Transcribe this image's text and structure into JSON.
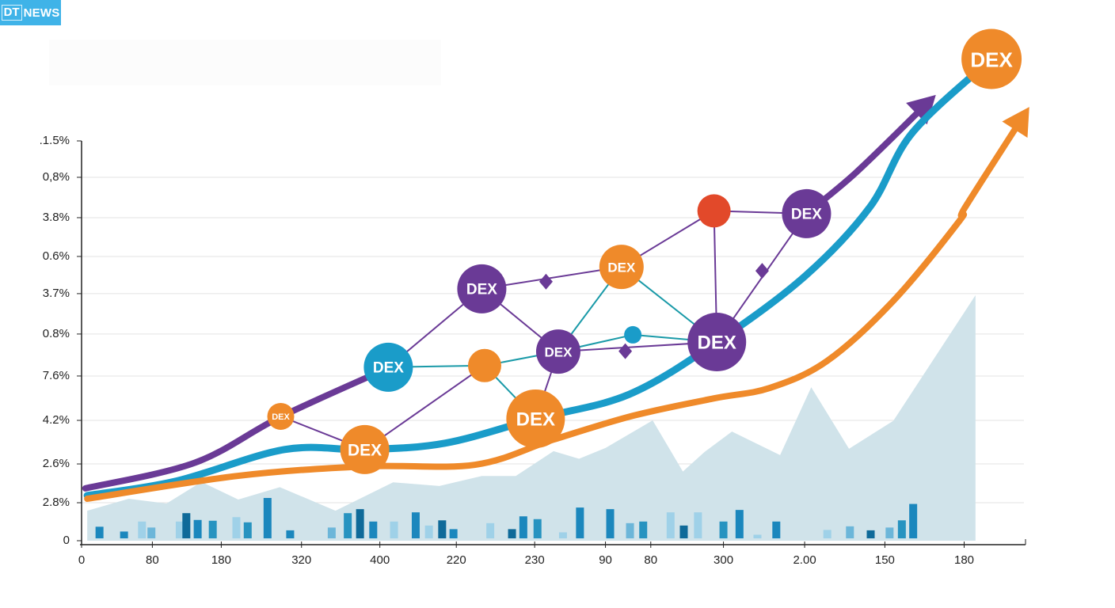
{
  "brand": {
    "logo_mark": "DT",
    "logo_text": "NEWS",
    "color": "#3fb3e8"
  },
  "chart_data": {
    "type": "line",
    "title": "",
    "xlabel": "",
    "ylabel": "",
    "grid": true,
    "x_scale": "normalized position 0-100 along x axis",
    "y_scale": "normalized position 0-100 along y axis (0 = baseline, 100 = top tick)",
    "x_ticks": [
      {
        "label": "0",
        "pos": 0
      },
      {
        "label": "80",
        "pos": 7.5
      },
      {
        "label": "180",
        "pos": 14.8
      },
      {
        "label": "320",
        "pos": 23.3
      },
      {
        "label": "400",
        "pos": 31.6
      },
      {
        "label": "220",
        "pos": 39.7
      },
      {
        "label": "230",
        "pos": 48.0
      },
      {
        "label": "90",
        "pos": 55.5
      },
      {
        "label": "80",
        "pos": 60.3
      },
      {
        "label": "300",
        "pos": 68.0
      },
      {
        "label": "2.00",
        "pos": 76.6
      },
      {
        "label": "150",
        "pos": 85.1
      },
      {
        "label": "180",
        "pos": 93.5
      }
    ],
    "y_ticks": [
      {
        "label": "0",
        "pos": 0
      },
      {
        "label": "2.8%",
        "pos": 9.5
      },
      {
        "label": "2.6%",
        "pos": 19.2
      },
      {
        "label": "4.2%",
        "pos": 30.1
      },
      {
        "label": "7.6%",
        "pos": 41.2
      },
      {
        "label": "0.8%",
        "pos": 51.7
      },
      {
        "label": "3.7%",
        "pos": 61.8
      },
      {
        "label": "0.6%",
        "pos": 71.1
      },
      {
        "label": "3.8%",
        "pos": 80.8
      },
      {
        "label": "0,8%",
        "pos": 90.9
      },
      {
        "label": ".1.5%",
        "pos": 100
      }
    ],
    "series": [
      {
        "name": "purple-trend",
        "color": "#6a3a96",
        "arrow": true,
        "points": [
          [
            0.4,
            13.1
          ],
          [
            12,
            19.5
          ],
          [
            21.1,
            31.0
          ],
          [
            32.5,
            43.2
          ]
        ],
        "arrow_points": [
          [
            77.0,
            82.2
          ],
          [
            82,
            92
          ],
          [
            90.5,
            111.5
          ]
        ]
      },
      {
        "name": "blue-trend",
        "color": "#1a9cc9",
        "arrow": false,
        "points": [
          [
            0.6,
            11.3
          ],
          [
            10,
            14.9
          ],
          [
            21.5,
            22.8
          ],
          [
            30,
            22.8
          ],
          [
            38.5,
            24.4
          ],
          [
            48.1,
            30.5
          ],
          [
            58,
            36.6
          ],
          [
            67.3,
            49.7
          ],
          [
            76.6,
            66.1
          ],
          [
            83.5,
            83.4
          ],
          [
            88,
            102
          ],
          [
            96.4,
            120.5
          ]
        ]
      },
      {
        "name": "orange-trend",
        "color": "#ef8a2a",
        "arrow": true,
        "points": [
          [
            0.6,
            10.5
          ],
          [
            16.5,
            16.2
          ],
          [
            30,
            18.6
          ],
          [
            41.7,
            19.0
          ],
          [
            50,
            25.3
          ],
          [
            58.5,
            31.3
          ],
          [
            67,
            35.6
          ],
          [
            72.9,
            38.2
          ],
          [
            79,
            45
          ],
          [
            86,
            60
          ],
          [
            93,
            80
          ],
          [
            93.5,
            83
          ],
          [
            100.4,
            108.5
          ]
        ]
      },
      {
        "name": "area-background",
        "type": "area",
        "color": "#d0e3ea",
        "points": [
          [
            0.6,
            7.5
          ],
          [
            5,
            10.5
          ],
          [
            9,
            9.3
          ],
          [
            12.7,
            14.7
          ],
          [
            16.6,
            10.3
          ],
          [
            21,
            13.4
          ],
          [
            26.9,
            7.5
          ],
          [
            33,
            14.6
          ],
          [
            37.9,
            13.7
          ],
          [
            42.4,
            16.2
          ],
          [
            46,
            16.2
          ],
          [
            50,
            22.4
          ],
          [
            52.7,
            20.5
          ],
          [
            55.5,
            23.2
          ],
          [
            60.5,
            30.1
          ],
          [
            63.7,
            17.3
          ],
          [
            66,
            22.2
          ],
          [
            68.9,
            27.3
          ],
          [
            74,
            21.4
          ],
          [
            77.3,
            38.4
          ],
          [
            81.3,
            23
          ],
          [
            86,
            30
          ],
          [
            94.7,
            61.4
          ],
          [
            94.7,
            0
          ]
        ]
      }
    ],
    "bars": {
      "colors": [
        "#1b87bd",
        "#2793c0",
        "#9fd1e8",
        "#0f6a99",
        "#6cb6d9"
      ],
      "items": [
        [
          1.9,
          2.9,
          0
        ],
        [
          4.5,
          1.7,
          0
        ],
        [
          6.4,
          4.2,
          2
        ],
        [
          7.4,
          2.7,
          4
        ],
        [
          10.4,
          4.2,
          2
        ],
        [
          11.1,
          6.3,
          3
        ],
        [
          12.3,
          4.6,
          0
        ],
        [
          13.9,
          4.4,
          1
        ],
        [
          16.4,
          5.3,
          2
        ],
        [
          17.6,
          4.0,
          1
        ],
        [
          19.7,
          10.1,
          0
        ],
        [
          22.1,
          2.0,
          0
        ],
        [
          26.5,
          2.7,
          4
        ],
        [
          28.2,
          6.3,
          1
        ],
        [
          29.5,
          7.3,
          3
        ],
        [
          30.9,
          4.2,
          0
        ],
        [
          33.1,
          4.2,
          2
        ],
        [
          35.4,
          6.5,
          0
        ],
        [
          36.8,
          3.2,
          2
        ],
        [
          38.2,
          4.5,
          3
        ],
        [
          39.4,
          2.3,
          0
        ],
        [
          43.3,
          3.8,
          2
        ],
        [
          45.6,
          2.3,
          3
        ],
        [
          46.8,
          5.5,
          0
        ],
        [
          48.3,
          4.8,
          1
        ],
        [
          51.0,
          1.5,
          2
        ],
        [
          52.8,
          7.7,
          0
        ],
        [
          56.0,
          7.3,
          0
        ],
        [
          58.1,
          3.8,
          4
        ],
        [
          59.5,
          4.2,
          1
        ],
        [
          62.4,
          6.5,
          2
        ],
        [
          63.8,
          3.2,
          3
        ],
        [
          65.3,
          6.5,
          2
        ],
        [
          68.0,
          4.2,
          1
        ],
        [
          69.7,
          7.1,
          0
        ],
        [
          71.6,
          0.9,
          2
        ],
        [
          73.6,
          4.2,
          0
        ],
        [
          79.0,
          2.1,
          2
        ],
        [
          81.4,
          3.0,
          4
        ],
        [
          83.6,
          2.0,
          3
        ],
        [
          85.6,
          2.7,
          4
        ],
        [
          86.9,
          4.5,
          1
        ],
        [
          88.1,
          8.6,
          0
        ]
      ]
    },
    "network": {
      "nodes": [
        {
          "id": "n1",
          "x": 21.1,
          "y": 31.1,
          "color": "#ef8a2a",
          "label": "DEX",
          "size": "xs"
        },
        {
          "id": "n2",
          "x": 30.0,
          "y": 22.8,
          "color": "#ef8a2a",
          "label": "DEX",
          "size": "l"
        },
        {
          "id": "n3",
          "x": 32.5,
          "y": 43.4,
          "color": "#1a9cc9",
          "label": "DEX",
          "size": "m"
        },
        {
          "id": "n4",
          "x": 42.4,
          "y": 63.0,
          "color": "#6a3a96",
          "label": "DEX",
          "size": "m"
        },
        {
          "id": "n5",
          "x": 42.7,
          "y": 43.8,
          "color": "#ef8a2a",
          "label": "",
          "size": "s"
        },
        {
          "id": "n6",
          "x": 48.1,
          "y": 30.5,
          "color": "#ef8a2a",
          "label": "DEX",
          "size": "xl"
        },
        {
          "id": "n7",
          "x": 50.5,
          "y": 47.3,
          "color": "#6a3a96",
          "label": "DEX",
          "size": "ms"
        },
        {
          "id": "n8",
          "x": 57.2,
          "y": 68.5,
          "color": "#ef8a2a",
          "label": "DEX",
          "size": "ms"
        },
        {
          "id": "n9",
          "x": 58.4,
          "y": 51.5,
          "color": "#1a9cc9",
          "label": "",
          "size": "xxs"
        },
        {
          "id": "n10",
          "x": 67.3,
          "y": 49.7,
          "color": "#6a3a96",
          "label": "DEX",
          "size": "xl"
        },
        {
          "id": "n11",
          "x": 67.0,
          "y": 82.5,
          "color": "#e2492a",
          "label": "",
          "size": "s"
        },
        {
          "id": "n12",
          "x": 76.8,
          "y": 81.8,
          "color": "#6a3a96",
          "label": "DEX",
          "size": "m"
        },
        {
          "id": "n13",
          "x": 96.4,
          "y": 120.5,
          "color": "#ef8a2a",
          "label": "DEX",
          "size": "xxl"
        }
      ],
      "diamonds": [
        {
          "x": 49.2,
          "y": 64.8,
          "color": "#6a3a96"
        },
        {
          "x": 57.6,
          "y": 47.4,
          "color": "#6a3a96"
        },
        {
          "x": 72.1,
          "y": 67.5,
          "color": "#6a3a96"
        }
      ],
      "edges": [
        {
          "from": "n1",
          "to": "n2",
          "color": "#6a3a96"
        },
        {
          "from": "n3",
          "to": "n4",
          "color": "#6a3a96"
        },
        {
          "from": "n3",
          "to": "n5",
          "color": "#1a9aa8"
        },
        {
          "from": "n2",
          "to": "n5",
          "color": "#6a3a96"
        },
        {
          "from": "n5",
          "to": "n6",
          "color": "#1a9aa8"
        },
        {
          "from": "n5",
          "to": "n7",
          "color": "#1a9aa8"
        },
        {
          "from": "n4",
          "to": "n7",
          "color": "#6a3a96"
        },
        {
          "from": "n4",
          "to": "n8",
          "color": "#6a3a96"
        },
        {
          "from": "n7",
          "to": "n6",
          "color": "#6a3a96"
        },
        {
          "from": "n7",
          "to": "n8",
          "color": "#1a9aa8"
        },
        {
          "from": "n7",
          "to": "n9",
          "color": "#1a9aa8"
        },
        {
          "from": "n9",
          "to": "n10",
          "color": "#1a9aa8"
        },
        {
          "from": "n7",
          "to": "n10",
          "color": "#6a3a96"
        },
        {
          "from": "n8",
          "to": "n10",
          "color": "#1a9aa8"
        },
        {
          "from": "n8",
          "to": "n11",
          "color": "#6a3a96"
        },
        {
          "from": "n11",
          "to": "n10",
          "color": "#6a3a96"
        },
        {
          "from": "n11",
          "to": "n12",
          "color": "#6a3a96"
        },
        {
          "from": "n12",
          "to": "n10",
          "color": "#6a3a96"
        }
      ]
    }
  }
}
